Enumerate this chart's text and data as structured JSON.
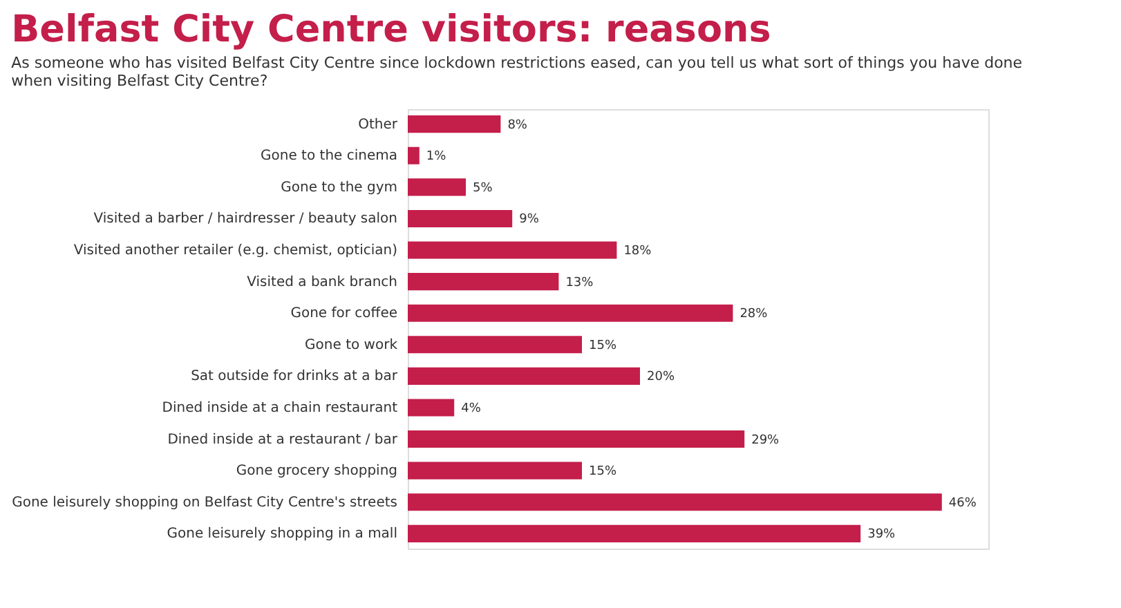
{
  "chart_data": {
    "type": "bar",
    "orientation": "horizontal",
    "title": "Belfast City Centre visitors: reasons",
    "subtitle": "As someone who has visited Belfast City Centre since lockdown restrictions eased, can you tell us what sort of things you have done\nwhen visiting Belfast City Centre?",
    "categories": [
      "Other",
      "Gone to the cinema",
      "Gone to the gym",
      "Visited a barber / hairdresser / beauty salon",
      "Visited another retailer (e.g. chemist, optician)",
      "Visited a bank branch",
      "Gone for coffee",
      "Gone to work",
      "Sat outside for drinks at a bar",
      "Dined inside at a chain restaurant",
      "Dined inside at a restaurant / bar",
      "Gone grocery shopping",
      "Gone leisurely shopping on Belfast City Centre's streets",
      "Gone leisurely shopping in a mall"
    ],
    "values": [
      8,
      1,
      5,
      9,
      18,
      13,
      28,
      15,
      20,
      4,
      29,
      15,
      46,
      39
    ],
    "value_labels": [
      "8%",
      "1%",
      "5%",
      "9%",
      "18%",
      "13%",
      "28%",
      "15%",
      "20%",
      "4%",
      "29%",
      "15%",
      "46%",
      "39%"
    ],
    "color": "#c41e4a",
    "xlim": [
      0,
      50
    ],
    "tick_labels": "y",
    "grid": false
  }
}
